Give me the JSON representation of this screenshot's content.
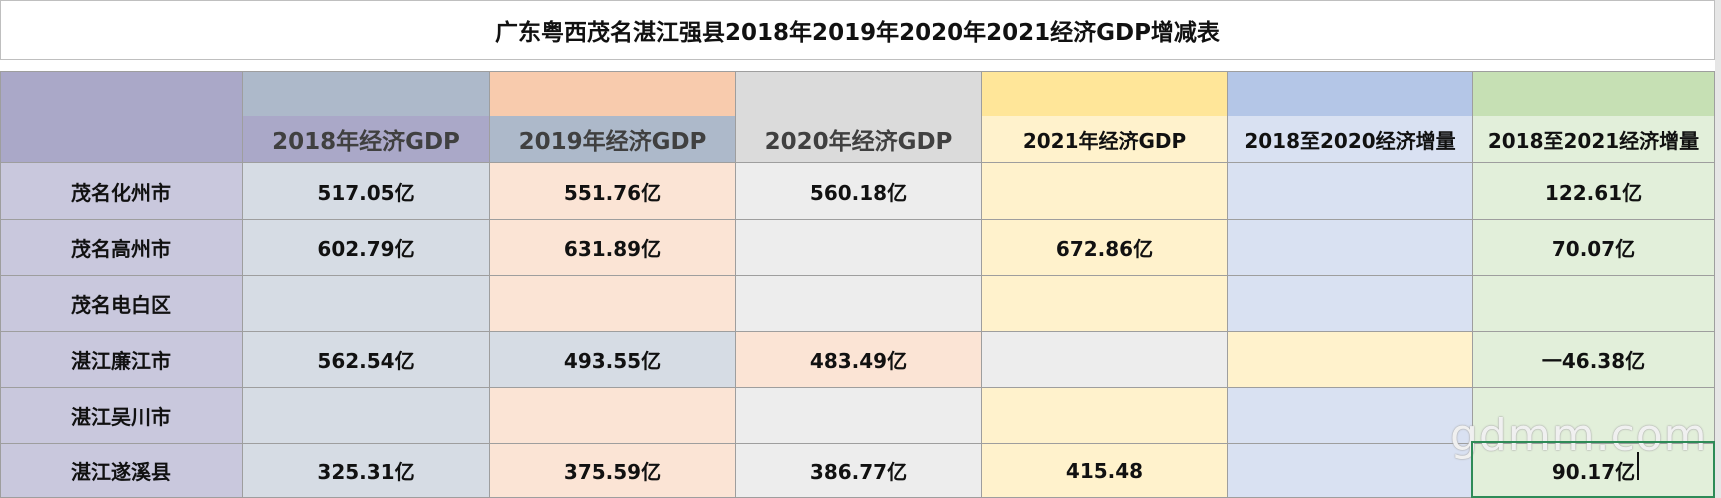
{
  "title": "广东粤西茂名湛江强县2018年2019年2020年2021经济GDP增减表",
  "headers": {
    "h2018": "2018年经济GDP",
    "h2019": "2019年经济GDP",
    "h2020": "2020年经济GDP",
    "h2021": "2021年经济GDP",
    "inc2020": "2018至2020经济增量",
    "inc2021": "2018至2021经济增量"
  },
  "rows": [
    {
      "name": "茂名化州市",
      "g2018": "517.05亿",
      "g2019": "551.76亿",
      "g2020": "560.18亿",
      "g2021": "",
      "inc2020": "",
      "inc2021": "122.61亿"
    },
    {
      "name": "茂名高州市",
      "g2018": "602.79亿",
      "g2019": "631.89亿",
      "g2020": "",
      "g2021": "672.86亿",
      "inc2020": "",
      "inc2021": "70.07亿"
    },
    {
      "name": "茂名电白区",
      "g2018": "",
      "g2019": "",
      "g2020": "",
      "g2021": "",
      "inc2020": "",
      "inc2021": ""
    },
    {
      "name": "湛江廉江市",
      "g2018": "562.54亿",
      "g2019": "493.55亿",
      "g2020": "483.49亿",
      "g2021": "",
      "inc2020": "",
      "inc2021": "一46.38亿"
    },
    {
      "name": "湛江吴川市",
      "g2018": "",
      "g2019": "",
      "g2020": "",
      "g2021": "",
      "inc2020": "",
      "inc2021": ""
    },
    {
      "name": "湛江遂溪县",
      "g2018": "325.31亿",
      "g2019": "375.59亿",
      "g2020": "386.77亿",
      "g2021": "415.48",
      "inc2020": "",
      "inc2021": "90.17亿"
    }
  ],
  "watermark": "gdmm.com",
  "colors": {
    "corner": "#aaa8c8",
    "name_col": "#c9c8dd",
    "col2018": "#d6dce4",
    "col2019": "#fbe4d5",
    "col2020": "#ededed",
    "col2021": "#fff2cc",
    "col_inc2020": "#d9e1f2",
    "col_inc2021": "#e2efda"
  }
}
